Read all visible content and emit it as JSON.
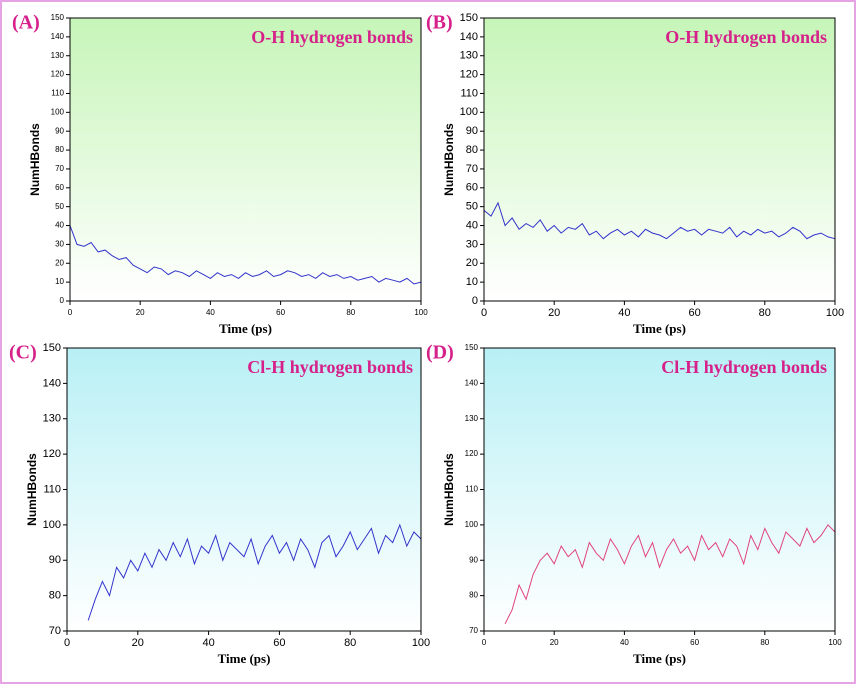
{
  "chart_data": [
    {
      "type": "line",
      "panel_label": "(A)",
      "title": "O-H hydrogen bonds",
      "xlabel": "Time (ps)",
      "ylabel": "NumHBonds",
      "background": [
        "#c6f5b8",
        "#ffffff"
      ],
      "color": "#3333cc",
      "x": [
        0,
        2,
        4,
        6,
        8,
        10,
        12,
        14,
        16,
        18,
        20,
        22,
        24,
        26,
        28,
        30,
        32,
        34,
        36,
        38,
        40,
        42,
        44,
        46,
        48,
        50,
        52,
        54,
        56,
        58,
        60,
        62,
        64,
        66,
        68,
        70,
        72,
        74,
        76,
        78,
        80,
        82,
        84,
        86,
        88,
        90,
        92,
        94,
        96,
        98,
        100
      ],
      "values": [
        40,
        30,
        29,
        31,
        26,
        27,
        24,
        22,
        23,
        19,
        17,
        15,
        18,
        17,
        14,
        16,
        15,
        13,
        16,
        14,
        12,
        15,
        13,
        14,
        12,
        15,
        13,
        14,
        16,
        13,
        14,
        16,
        15,
        13,
        14,
        12,
        15,
        13,
        14,
        12,
        13,
        11,
        12,
        13,
        10,
        12,
        11,
        10,
        12,
        9,
        10
      ],
      "xlim": [
        0,
        100
      ],
      "ylim": [
        0,
        150
      ],
      "xticks": [
        0,
        20,
        40,
        60,
        80,
        100
      ],
      "yticks": [
        0,
        10,
        20,
        30,
        40,
        50,
        60,
        70,
        80,
        90,
        100,
        110,
        120,
        130,
        140,
        150
      ]
    },
    {
      "type": "line",
      "panel_label": "(B)",
      "title": "O-H hydrogen bonds",
      "xlabel": "Time (ps)",
      "ylabel": "NumHBonds",
      "background": [
        "#c6f5b8",
        "#ffffff"
      ],
      "color": "#3333cc",
      "x": [
        0,
        2,
        4,
        6,
        8,
        10,
        12,
        14,
        16,
        18,
        20,
        22,
        24,
        26,
        28,
        30,
        32,
        34,
        36,
        38,
        40,
        42,
        44,
        46,
        48,
        50,
        52,
        54,
        56,
        58,
        60,
        62,
        64,
        66,
        68,
        70,
        72,
        74,
        76,
        78,
        80,
        82,
        84,
        86,
        88,
        90,
        92,
        94,
        96,
        98,
        100
      ],
      "values": [
        48,
        45,
        52,
        40,
        44,
        38,
        41,
        39,
        43,
        37,
        40,
        36,
        39,
        38,
        41,
        35,
        37,
        33,
        36,
        38,
        35,
        37,
        34,
        38,
        36,
        35,
        33,
        36,
        39,
        37,
        38,
        35,
        38,
        37,
        36,
        39,
        34,
        37,
        35,
        38,
        36,
        37,
        34,
        36,
        39,
        37,
        33,
        35,
        36,
        34,
        33
      ],
      "xlim": [
        0,
        100
      ],
      "ylim": [
        0,
        150
      ],
      "xticks": [
        0,
        20,
        40,
        60,
        80,
        100
      ],
      "yticks": [
        0,
        10,
        20,
        30,
        40,
        50,
        60,
        70,
        80,
        90,
        100,
        110,
        120,
        130,
        140,
        150
      ]
    },
    {
      "type": "line",
      "panel_label": "(C)",
      "title": "Cl-H hydrogen bonds",
      "xlabel": "Time (ps)",
      "ylabel": "NumHBonds",
      "background": [
        "#b8f0f5",
        "#ffffff"
      ],
      "color": "#3333cc",
      "x": [
        6,
        8,
        10,
        12,
        14,
        16,
        18,
        20,
        22,
        24,
        26,
        28,
        30,
        32,
        34,
        36,
        38,
        40,
        42,
        44,
        46,
        48,
        50,
        52,
        54,
        56,
        58,
        60,
        62,
        64,
        66,
        68,
        70,
        72,
        74,
        76,
        78,
        80,
        82,
        84,
        86,
        88,
        90,
        92,
        94,
        96,
        98,
        100
      ],
      "values": [
        73,
        79,
        84,
        80,
        88,
        85,
        90,
        87,
        92,
        88,
        93,
        90,
        95,
        91,
        96,
        89,
        94,
        92,
        97,
        90,
        95,
        93,
        91,
        96,
        89,
        94,
        97,
        92,
        95,
        90,
        96,
        93,
        88,
        95,
        97,
        91,
        94,
        98,
        93,
        96,
        99,
        92,
        97,
        95,
        100,
        94,
        98,
        96
      ],
      "xlim": [
        0,
        100
      ],
      "ylim": [
        70,
        150
      ],
      "xticks": [
        0,
        20,
        40,
        60,
        80,
        100
      ],
      "yticks": [
        70,
        80,
        90,
        100,
        110,
        120,
        130,
        140,
        150
      ]
    },
    {
      "type": "line",
      "panel_label": "(D)",
      "title": "Cl-H hydrogen bonds",
      "xlabel": "Time (ps)",
      "ylabel": "NumHBonds",
      "background": [
        "#b8f0f5",
        "#ffffff"
      ],
      "color": "#e0447f",
      "x": [
        6,
        8,
        10,
        12,
        14,
        16,
        18,
        20,
        22,
        24,
        26,
        28,
        30,
        32,
        34,
        36,
        38,
        40,
        42,
        44,
        46,
        48,
        50,
        52,
        54,
        56,
        58,
        60,
        62,
        64,
        66,
        68,
        70,
        72,
        74,
        76,
        78,
        80,
        82,
        84,
        86,
        88,
        90,
        92,
        94,
        96,
        98,
        100
      ],
      "values": [
        72,
        76,
        83,
        79,
        86,
        90,
        92,
        89,
        94,
        91,
        93,
        88,
        95,
        92,
        90,
        96,
        93,
        89,
        94,
        97,
        91,
        95,
        88,
        93,
        96,
        92,
        94,
        90,
        97,
        93,
        95,
        91,
        96,
        94,
        89,
        97,
        93,
        99,
        95,
        92,
        98,
        96,
        94,
        99,
        95,
        97,
        100,
        98
      ],
      "xlim": [
        0,
        100
      ],
      "ylim": [
        70,
        150
      ],
      "xticks": [
        0,
        20,
        40,
        60,
        80,
        100
      ],
      "yticks": [
        70,
        80,
        90,
        100,
        110,
        120,
        130,
        140,
        150
      ]
    }
  ]
}
